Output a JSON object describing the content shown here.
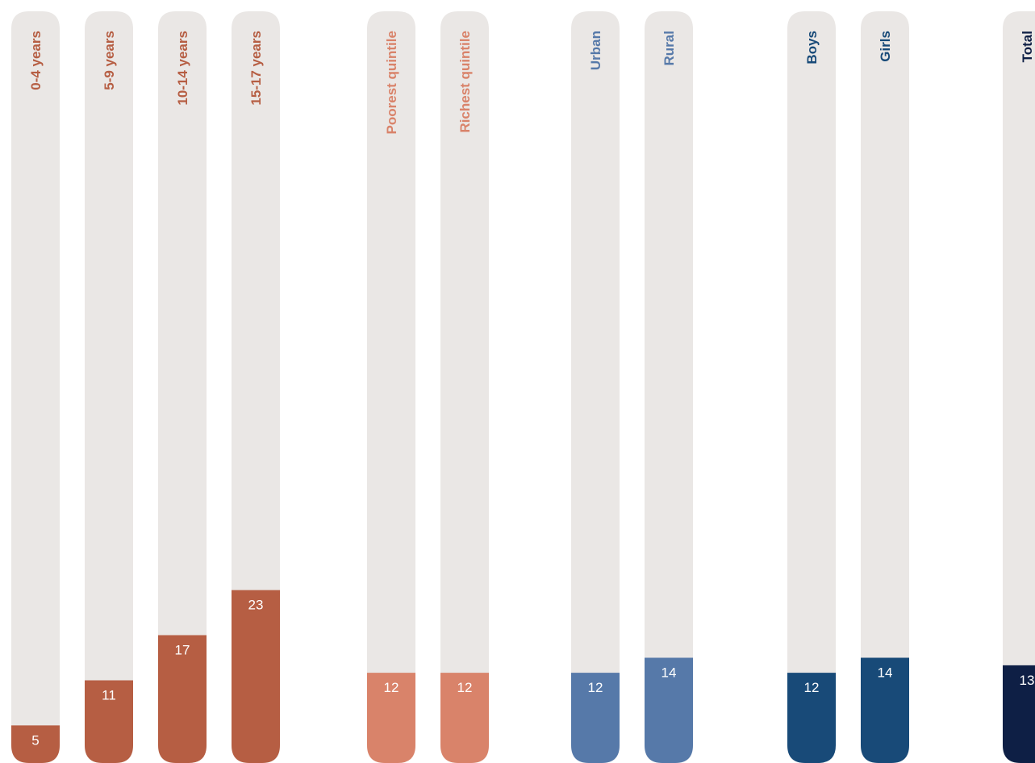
{
  "chart_data": {
    "type": "bar",
    "orientation": "vertical",
    "track_color": "#EAE7E5",
    "ylim": [
      0,
      100
    ],
    "grid": false,
    "categories": [
      {
        "label": "0-4 years",
        "value": 5,
        "value_label": "5",
        "color": "#B65E43"
      },
      {
        "label": "5-9 years",
        "value": 11,
        "value_label": "11",
        "color": "#B65E43"
      },
      {
        "label": "10-14 years",
        "value": 17,
        "value_label": "17",
        "color": "#B65E43"
      },
      {
        "label": "15-17 years",
        "value": 23,
        "value_label": "23",
        "color": "#B65E43"
      },
      {
        "label": "Poorest quintile",
        "value": 12,
        "value_label": "12",
        "color": "#D9836A"
      },
      {
        "label": "Richest quintile",
        "value": 12,
        "value_label": "12",
        "color": "#D9836A"
      },
      {
        "label": "Urban",
        "value": 12,
        "value_label": "12",
        "color": "#5679A9"
      },
      {
        "label": "Rural",
        "value": 14,
        "value_label": "14",
        "color": "#5679A9"
      },
      {
        "label": "Boys",
        "value": 12,
        "value_label": "12",
        "color": "#184A78"
      },
      {
        "label": "Girls",
        "value": 14,
        "value_label": "14",
        "color": "#184A78"
      },
      {
        "label": "Total",
        "value": 13,
        "value_label": "13",
        "color": "#0E1F45"
      }
    ]
  }
}
